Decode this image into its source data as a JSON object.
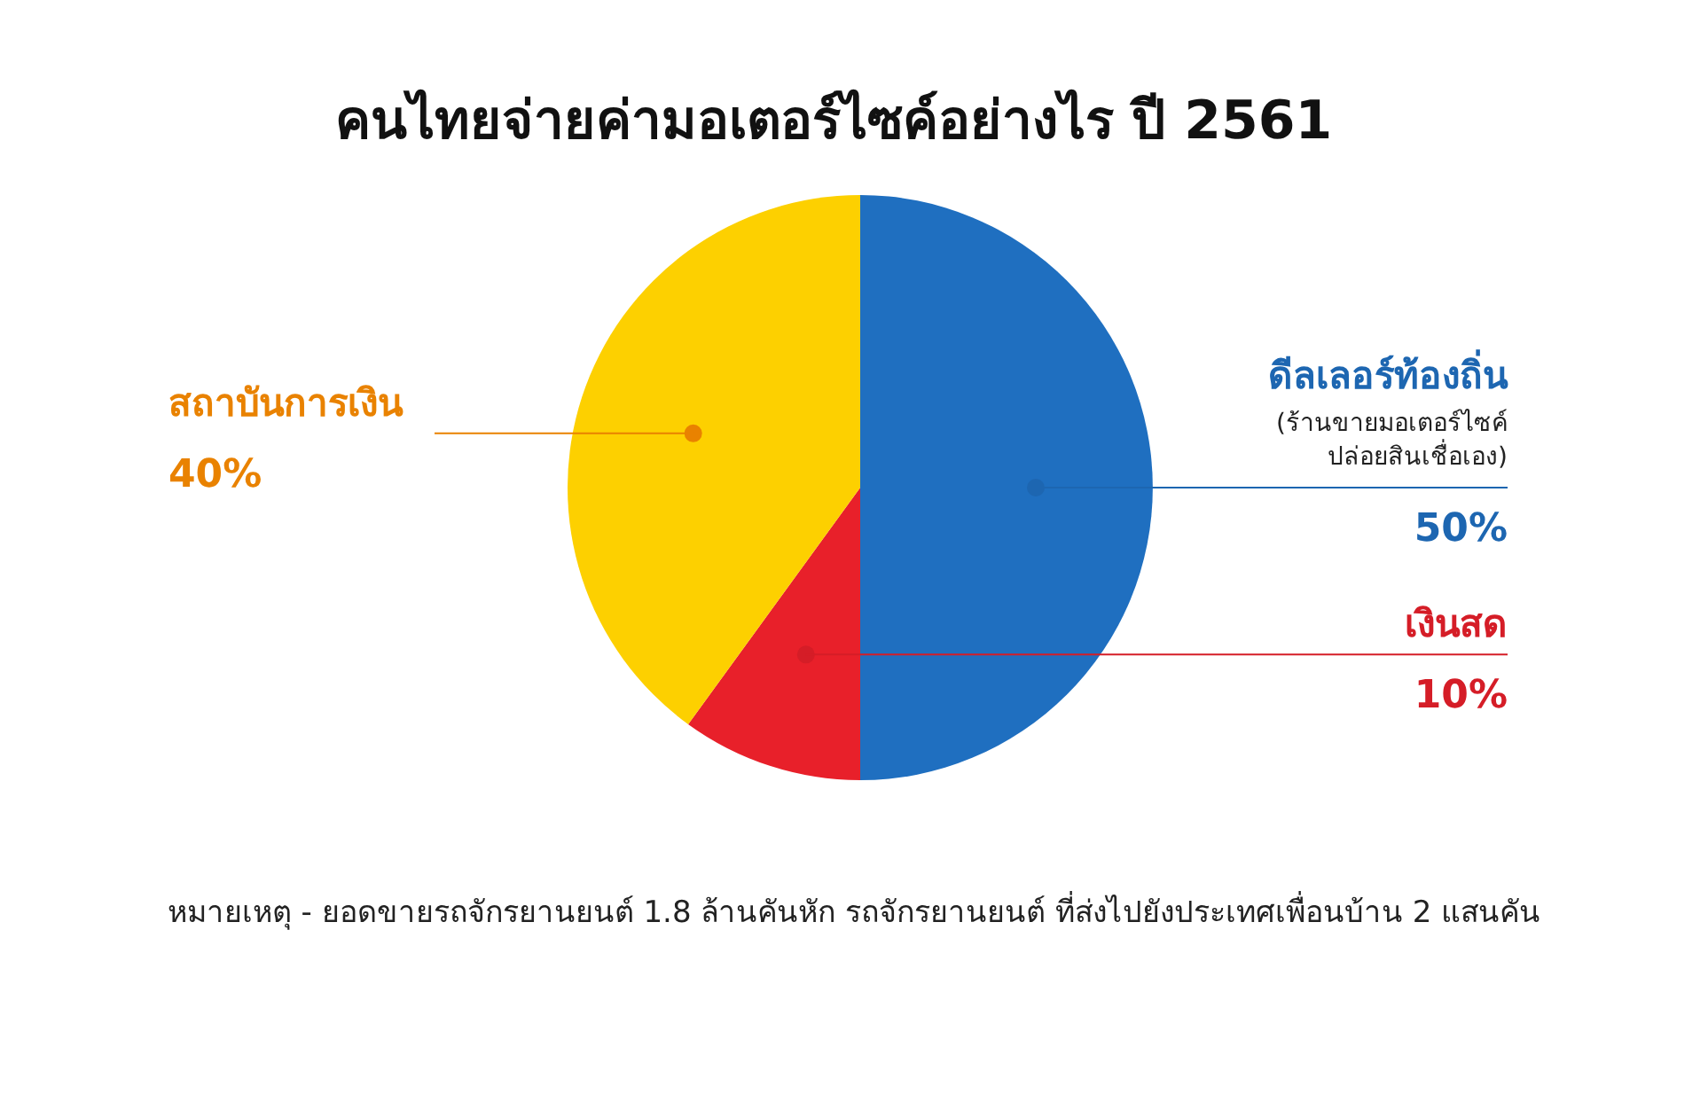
{
  "chart_data": {
    "type": "pie",
    "title": "คนไทยจ่ายค่ามอเตอร์ไซค์อย่างไร ปี 2561",
    "categories": [
      "ดีลเลอร์ท้องถิ่น",
      "เงินสด",
      "สถาบันการเงิน"
    ],
    "values": [
      50,
      10,
      40
    ],
    "value_labels": [
      "50%",
      "10%",
      "40%"
    ],
    "colors": [
      "#1f6fc0",
      "#e8202a",
      "#fdd000"
    ],
    "legend": false,
    "annotations": [
      "(ร้านขายมอเตอร์ไซค์ ปล่อยสินเชื่อเอง)",
      "หมายเหตุ - ยอดขายรถจักรยานยนต์ 1.8 ล้านคันหัก รถจักรยานยนต์ ที่ส่งไปยังประเทศเพื่อนบ้าน 2 แสนคัน"
    ]
  }
}
